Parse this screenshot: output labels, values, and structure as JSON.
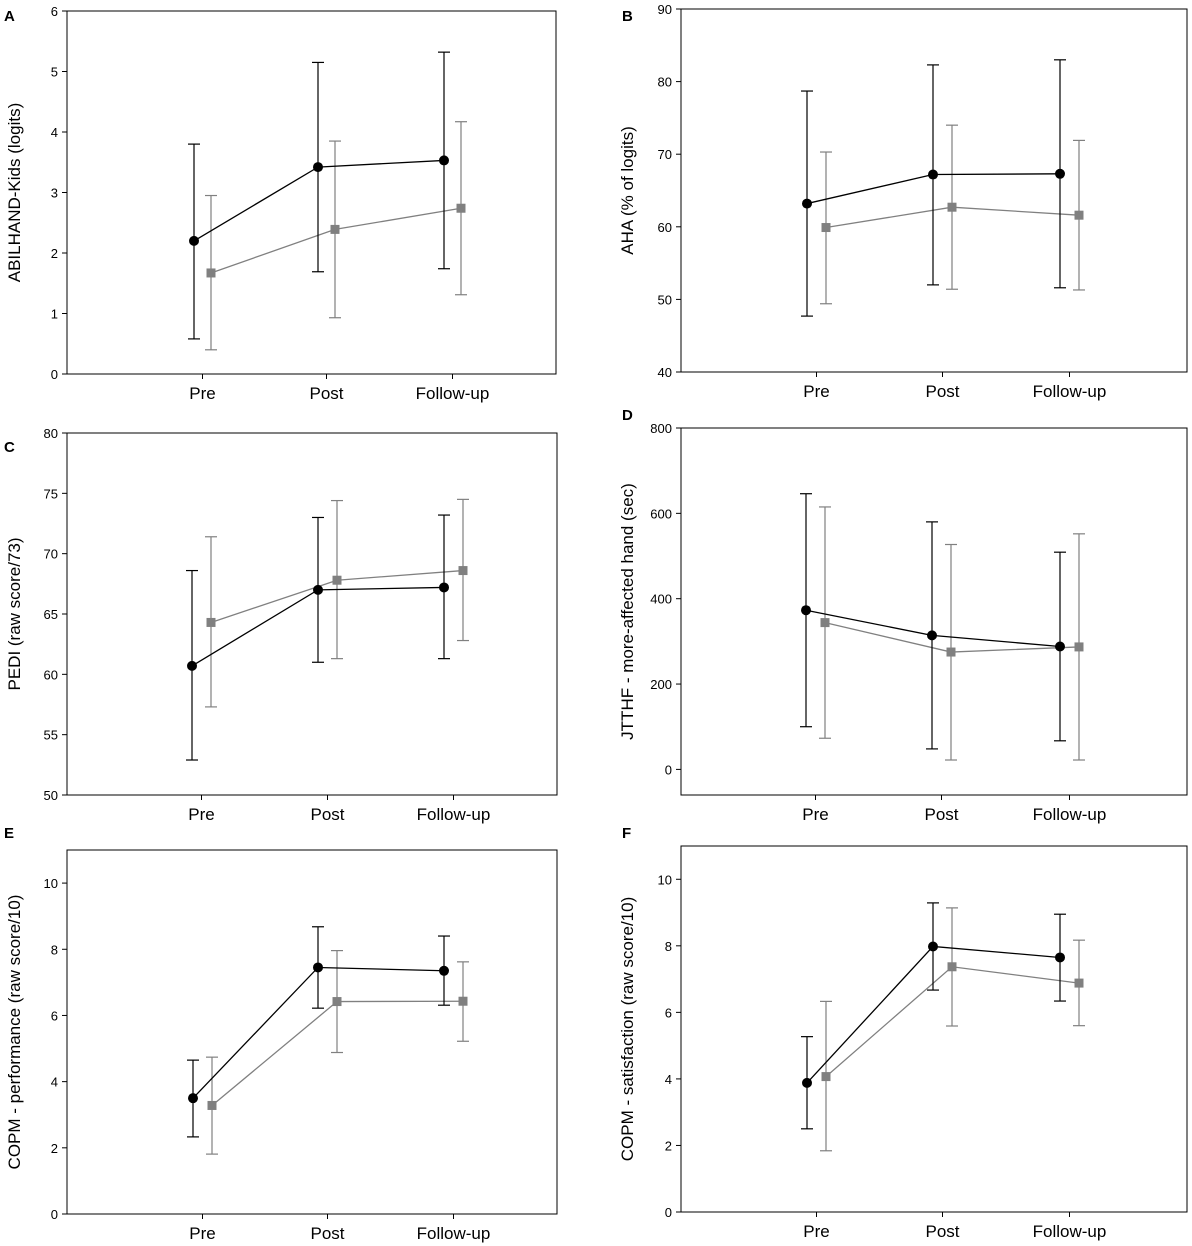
{
  "chart_data": [
    {
      "panel": "A",
      "type": "line",
      "categories": [
        "Pre",
        "Post",
        "Follow-up"
      ],
      "ylabel": "ABILHAND-Kids (logits)",
      "ylim": [
        0,
        6
      ],
      "yticks": [
        "0",
        "1",
        "2",
        "3",
        "4",
        "5",
        "6"
      ],
      "series": [
        {
          "name": "group-black",
          "color": "#000000",
          "marker": "circle",
          "values": [
            2.2,
            3.42,
            3.53
          ],
          "lower": [
            0.58,
            1.69,
            1.74
          ],
          "upper": [
            3.8,
            5.15,
            5.32
          ]
        },
        {
          "name": "group-gray",
          "color": "#808080",
          "marker": "square",
          "values": [
            1.67,
            2.39,
            2.74
          ],
          "lower": [
            0.4,
            0.93,
            1.31
          ],
          "upper": [
            2.95,
            3.85,
            4.17
          ]
        }
      ]
    },
    {
      "panel": "B",
      "type": "line",
      "categories": [
        "Pre",
        "Post",
        "Follow-up"
      ],
      "ylabel": "AHA (% of logits)",
      "ylim": [
        40,
        90
      ],
      "yticks": [
        "40",
        "50",
        "60",
        "70",
        "80",
        "90"
      ],
      "series": [
        {
          "name": "group-black",
          "color": "#000000",
          "marker": "circle",
          "values": [
            63.2,
            67.2,
            67.3
          ],
          "lower": [
            47.7,
            52.0,
            51.6
          ],
          "upper": [
            78.7,
            82.3,
            83.0
          ]
        },
        {
          "name": "group-gray",
          "color": "#808080",
          "marker": "square",
          "values": [
            59.9,
            62.7,
            61.6
          ],
          "lower": [
            49.4,
            51.4,
            51.3
          ],
          "upper": [
            70.3,
            74.0,
            71.9
          ]
        }
      ]
    },
    {
      "panel": "C",
      "type": "line",
      "categories": [
        "Pre",
        "Post",
        "Follow-up"
      ],
      "ylabel": "PEDI (raw score/73)",
      "ylim": [
        50,
        80
      ],
      "yticks": [
        "50",
        "55",
        "60",
        "65",
        "70",
        "75",
        "80"
      ],
      "series": [
        {
          "name": "group-black",
          "color": "#000000",
          "marker": "circle",
          "values": [
            60.7,
            67.0,
            67.2
          ],
          "lower": [
            52.9,
            61.0,
            61.3
          ],
          "upper": [
            68.6,
            73.0,
            73.2
          ]
        },
        {
          "name": "group-gray",
          "color": "#808080",
          "marker": "square",
          "values": [
            64.3,
            67.8,
            68.6
          ],
          "lower": [
            57.3,
            61.3,
            62.8
          ],
          "upper": [
            71.4,
            74.4,
            74.5
          ]
        }
      ]
    },
    {
      "panel": "D",
      "type": "line",
      "categories": [
        "Pre",
        "Post",
        "Follow-up"
      ],
      "ylabel": "JTTHF - more-affected hand (sec)",
      "ylim": [
        -60,
        800
      ],
      "yticks": [
        "0",
        "200",
        "400",
        "600",
        "800"
      ],
      "ytickvalues": [
        0,
        200,
        400,
        600,
        800
      ],
      "series": [
        {
          "name": "group-black",
          "color": "#000000",
          "marker": "circle",
          "values": [
            373,
            314,
            288
          ],
          "lower": [
            100,
            48,
            67
          ],
          "upper": [
            646,
            580,
            509
          ]
        },
        {
          "name": "group-gray",
          "color": "#808080",
          "marker": "square",
          "values": [
            344,
            275,
            287
          ],
          "lower": [
            73,
            22,
            22
          ],
          "upper": [
            615,
            527,
            552
          ]
        }
      ]
    },
    {
      "panel": "E",
      "type": "line",
      "categories": [
        "Pre",
        "Post",
        "Follow-up"
      ],
      "ylabel": "COPM - performance (raw score/10)",
      "ylim": [
        0,
        11
      ],
      "yticks": [
        "0",
        "2",
        "4",
        "6",
        "8",
        "10"
      ],
      "ytickvalues": [
        0,
        2,
        4,
        6,
        8,
        10
      ],
      "series": [
        {
          "name": "group-black",
          "color": "#000000",
          "marker": "circle",
          "values": [
            3.5,
            7.45,
            7.35
          ],
          "lower": [
            2.33,
            6.22,
            6.31
          ],
          "upper": [
            4.65,
            8.68,
            8.4
          ]
        },
        {
          "name": "group-gray",
          "color": "#808080",
          "marker": "square",
          "values": [
            3.28,
            6.42,
            6.43
          ],
          "lower": [
            1.81,
            4.88,
            5.22
          ],
          "upper": [
            4.74,
            7.96,
            7.62
          ]
        }
      ]
    },
    {
      "panel": "F",
      "type": "line",
      "categories": [
        "Pre",
        "Post",
        "Follow-up"
      ],
      "ylabel": "COPM - satisfaction (raw score/10)",
      "ylim": [
        0,
        11
      ],
      "yticks": [
        "0",
        "2",
        "4",
        "6",
        "8",
        "10"
      ],
      "ytickvalues": [
        0,
        2,
        4,
        6,
        8,
        10
      ],
      "series": [
        {
          "name": "group-black",
          "color": "#000000",
          "marker": "circle",
          "values": [
            3.88,
            7.98,
            7.65
          ],
          "lower": [
            2.5,
            6.67,
            6.34
          ],
          "upper": [
            5.27,
            9.29,
            8.95
          ]
        },
        {
          "name": "group-gray",
          "color": "#808080",
          "marker": "square",
          "values": [
            4.07,
            7.37,
            6.88
          ],
          "lower": [
            1.84,
            5.59,
            5.6
          ],
          "upper": [
            6.33,
            9.14,
            8.17
          ]
        }
      ]
    }
  ]
}
